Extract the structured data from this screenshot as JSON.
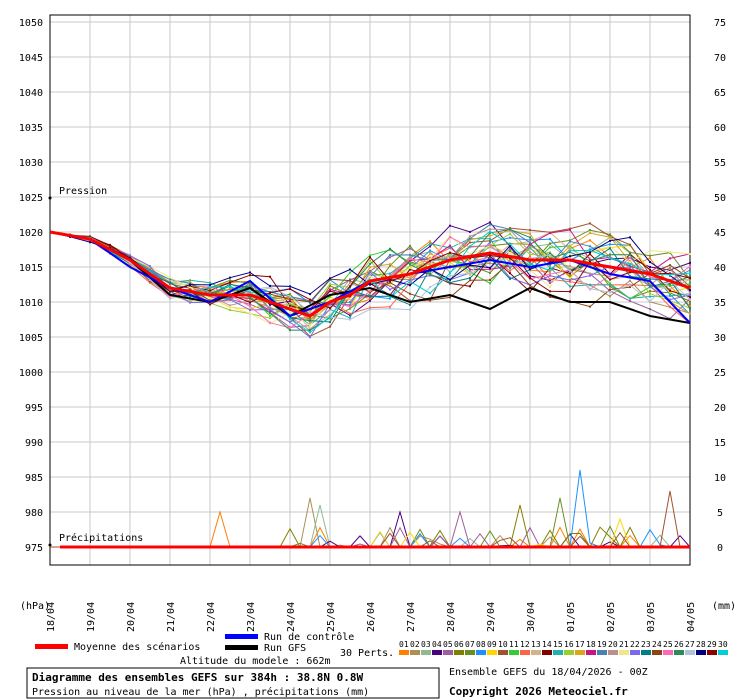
{
  "chart_data": {
    "type": "line",
    "left_axis": {
      "label": "(hPa)",
      "ticks": [
        "1050",
        "1045",
        "1040",
        "1035",
        "1030",
        "1025",
        "1020",
        "1015",
        "1010",
        "1005",
        "1000",
        "995",
        "990",
        "985",
        "980",
        "975"
      ],
      "range": [
        975,
        1050
      ]
    },
    "right_axis": {
      "label": "(mm)",
      "ticks": [
        "75",
        "70",
        "65",
        "60",
        "55",
        "50",
        "45",
        "40",
        "35",
        "30",
        "25",
        "20",
        "15",
        "10",
        "5",
        "0"
      ],
      "range": [
        0,
        75
      ]
    },
    "x_ticks": [
      "18/04",
      "19/04",
      "20/04",
      "21/04",
      "22/04",
      "23/04",
      "24/04",
      "25/04",
      "26/04",
      "27/04",
      "28/04",
      "29/04",
      "30/04",
      "01/05",
      "02/05",
      "03/05",
      "04/05"
    ],
    "x_range_hours": [
      0,
      384
    ],
    "labels": {
      "pression": "Pression",
      "precip": "Précipitations"
    },
    "mean_pressure": {
      "name": "Moyenne des scénarios",
      "color": "#ff0000",
      "x": [
        0,
        24,
        48,
        72,
        96,
        120,
        144,
        156,
        168,
        180,
        192,
        216,
        240,
        264,
        288,
        312,
        336,
        360,
        384
      ],
      "values": [
        1020,
        1019,
        1016,
        1012,
        1011,
        1011,
        1009,
        1008,
        1010,
        1011,
        1013,
        1014,
        1016,
        1017,
        1016,
        1016,
        1015,
        1014,
        1012
      ]
    },
    "control_pressure": {
      "name": "Run de contrôle",
      "color": "#0000ff",
      "x": [
        0,
        24,
        48,
        72,
        96,
        120,
        144,
        168,
        192,
        216,
        240,
        264,
        288,
        312,
        336,
        360,
        384
      ],
      "values": [
        1020,
        1019,
        1015,
        1012,
        1010,
        1013,
        1008,
        1010,
        1013,
        1014,
        1015,
        1016,
        1015,
        1016,
        1014,
        1013,
        1007
      ]
    },
    "gfs_pressure": {
      "name": "Run GFS",
      "color": "#000000",
      "x": [
        0,
        24,
        48,
        72,
        96,
        120,
        144,
        168,
        192,
        216,
        240,
        264,
        288,
        312,
        336,
        360,
        384
      ],
      "values": [
        1020,
        1019,
        1016,
        1011,
        1010,
        1012,
        1008,
        1011,
        1012,
        1010,
        1011,
        1009,
        1012,
        1010,
        1010,
        1008,
        1007
      ]
    },
    "perturbation_colors": [
      "#ff7f00",
      "#ad8f53",
      "#8fbc8f",
      "#4b0082",
      "#9f5f9f",
      "#808000",
      "#6b8e23",
      "#1e90ff",
      "#ffd700",
      "#a0522d",
      "#32cd32",
      "#ff6347",
      "#d2b48c",
      "#800000",
      "#20b2aa",
      "#9acd32",
      "#daa520",
      "#c71585",
      "#4682b4",
      "#bc8f8f",
      "#f0e68c",
      "#7b68ee",
      "#008080",
      "#8b4513",
      "#ff69b4",
      "#2e8b57",
      "#b0c4de",
      "#000080",
      "#8b0000",
      "#00ced1"
    ],
    "perturbation_numbers": [
      "01",
      "02",
      "03",
      "04",
      "05",
      "06",
      "07",
      "08",
      "09",
      "10",
      "11",
      "12",
      "13",
      "14",
      "15",
      "16",
      "17",
      "18",
      "19",
      "20",
      "21",
      "22",
      "23",
      "24",
      "25",
      "26",
      "27",
      "28",
      "29",
      "30"
    ],
    "precip_peaks": {
      "x": [
        102,
        156,
        162,
        210,
        246,
        282,
        306,
        318,
        342,
        372
      ],
      "values": [
        5,
        7,
        6,
        5,
        5,
        6,
        7,
        11,
        4,
        8
      ]
    }
  },
  "legend": {
    "mean_label": "Moyenne des scénarios",
    "control_label": "Run de contrôle",
    "gfs_label": "Run GFS",
    "perts_label": "30 Perts.",
    "altitude": "Altitude du modele : 662m"
  },
  "footer": {
    "title": "Diagramme des ensembles GEFS sur 384h : 38.8N 0.8W",
    "subtitle": "Pression au niveau de la mer (hPa) , précipitations (mm)",
    "run_info": "Ensemble GEFS du 18/04/2026 - 00Z",
    "copyright": "Copyright 2026 Meteociel.fr"
  }
}
